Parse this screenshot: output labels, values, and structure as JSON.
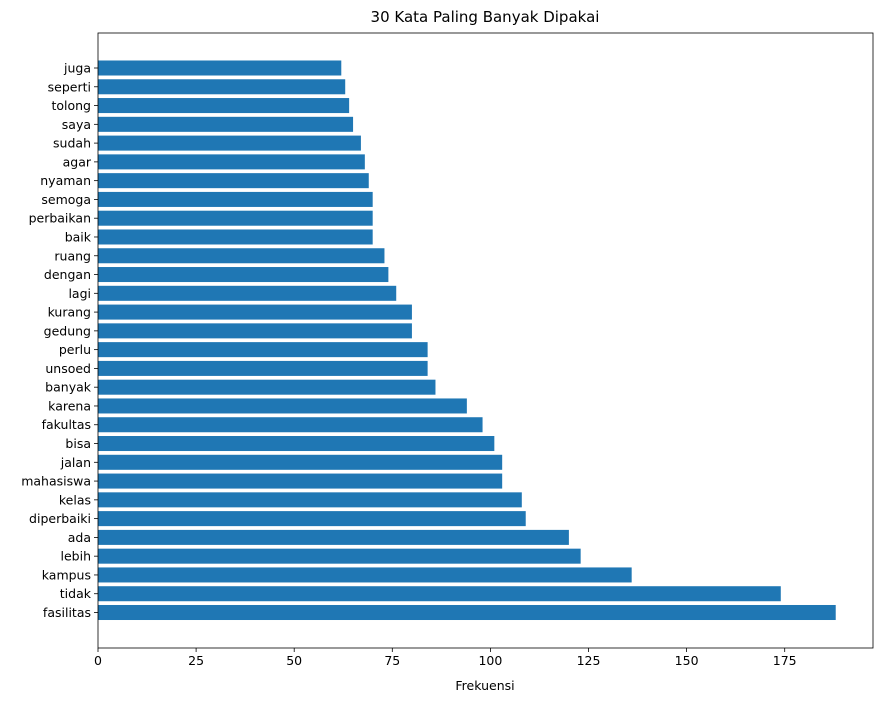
{
  "chart_data": {
    "type": "bar",
    "orientation": "horizontal",
    "title": "30 Kata Paling Banyak Dipakai",
    "xlabel": "Frekuensi",
    "ylabel": "",
    "xlim": [
      0,
      197.5
    ],
    "xticks": [
      0,
      25,
      50,
      75,
      100,
      125,
      150,
      175
    ],
    "grid": false,
    "bar_color": "#1f77b4",
    "categories": [
      "fasilitas",
      "tidak",
      "kampus",
      "lebih",
      "ada",
      "diperbaiki",
      "kelas",
      "mahasiswa",
      "jalan",
      "bisa",
      "fakultas",
      "karena",
      "banyak",
      "unsoed",
      "perlu",
      "gedung",
      "kurang",
      "lagi",
      "dengan",
      "ruang",
      "baik",
      "perbaikan",
      "semoga",
      "nyaman",
      "agar",
      "sudah",
      "saya",
      "tolong",
      "seperti",
      "juga"
    ],
    "values": [
      188,
      174,
      136,
      123,
      120,
      109,
      108,
      103,
      103,
      101,
      98,
      94,
      86,
      84,
      84,
      80,
      80,
      76,
      74,
      73,
      70,
      70,
      70,
      69,
      68,
      67,
      65,
      64,
      63,
      62
    ]
  }
}
